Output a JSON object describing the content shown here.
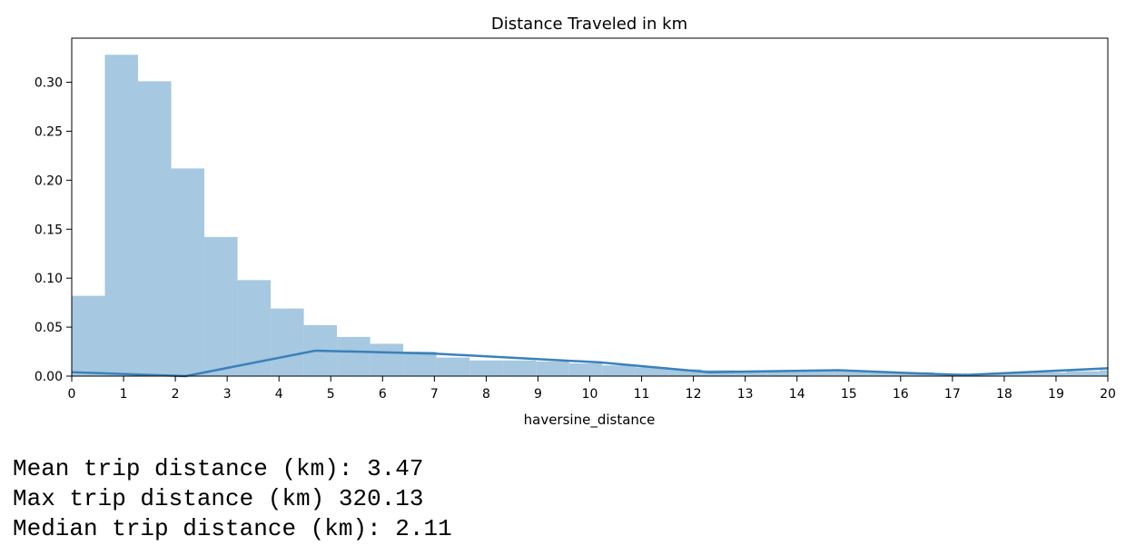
{
  "chart_data": {
    "type": "bar",
    "title": "Distance Traveled in km",
    "xlabel": "haversine_distance",
    "ylabel": "",
    "xlim": [
      0,
      20
    ],
    "ylim": [
      0,
      0.345
    ],
    "xticks": [
      "0",
      "1",
      "2",
      "3",
      "4",
      "5",
      "6",
      "7",
      "8",
      "9",
      "10",
      "11",
      "12",
      "13",
      "14",
      "15",
      "16",
      "17",
      "18",
      "19",
      "20"
    ],
    "yticks": [
      "0.00",
      "0.05",
      "0.10",
      "0.15",
      "0.20",
      "0.25",
      "0.30"
    ],
    "grid": false,
    "legend": "none",
    "histogram": {
      "bin_edges": [
        0,
        0.64,
        1.28,
        1.92,
        2.56,
        3.2,
        3.84,
        4.48,
        5.12,
        5.76,
        6.4,
        7.04,
        7.68,
        8.32,
        8.96,
        9.6,
        10.24,
        10.88,
        11.52,
        12.16,
        12.8,
        13.44,
        14.08,
        14.72,
        15.36,
        16.0,
        16.64,
        17.28,
        17.92,
        18.56,
        19.2,
        19.84,
        20.0
      ],
      "densities": [
        0.082,
        0.328,
        0.301,
        0.212,
        0.142,
        0.098,
        0.069,
        0.052,
        0.04,
        0.033,
        0.025,
        0.019,
        0.016,
        0.016,
        0.015,
        0.013,
        0.011,
        0.009,
        0.007,
        0.006,
        0.005,
        0.005,
        0.005,
        0.005,
        0.004,
        0.004,
        0.003,
        0.002,
        0.003,
        0.004,
        0.005,
        0.006
      ]
    },
    "kde": {
      "x": [
        0,
        2.2,
        4.7,
        7.0,
        10.2,
        12.3,
        14.8,
        17.2,
        20.0
      ],
      "y": [
        0.004,
        0.0,
        0.026,
        0.023,
        0.014,
        0.004,
        0.006,
        0.001,
        0.008
      ]
    },
    "colors": {
      "bar": "#a6c8e0",
      "line": "#3a81bb"
    }
  },
  "output": {
    "lines": [
      "Mean trip distance (km): 3.47",
      "Max trip distance (km) 320.13",
      "Median trip distance (km): 2.11"
    ]
  }
}
